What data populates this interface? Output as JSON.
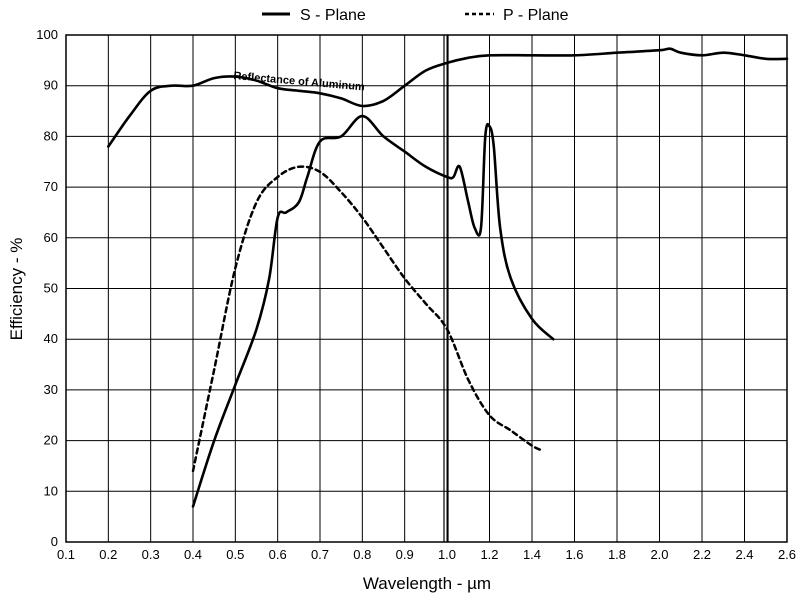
{
  "chart_data": {
    "type": "line",
    "title": "",
    "xlabel": "Wavelength - µm",
    "ylabel": "Efficiency - %",
    "xlim": [
      0.1,
      2.6
    ],
    "ylim": [
      0,
      100
    ],
    "x_major_ticks": [
      0.1,
      0.2,
      0.3,
      0.4,
      0.5,
      0.6,
      0.7,
      0.8,
      0.9,
      1.0,
      1.2,
      1.4,
      1.6,
      1.8,
      2.0,
      2.2,
      2.4,
      2.6
    ],
    "x_tick_labels": [
      "0.1",
      "0.2",
      "0.3",
      "0.4",
      "0.5",
      "0.6",
      "0.7",
      "0.8",
      "0.9",
      "1.0",
      "1.2",
      "1.4",
      "1.6",
      "1.8",
      "2.0",
      "2.2",
      "2.4",
      "2.6"
    ],
    "y_ticks": [
      0,
      10,
      20,
      30,
      40,
      50,
      60,
      70,
      80,
      90,
      100
    ],
    "y_tick_labels": [
      "0",
      "10",
      "20",
      "30",
      "40",
      "50",
      "60",
      "70",
      "80",
      "90",
      "100"
    ],
    "grid": true,
    "legend_position": "top",
    "axis_break_at": 1.0,
    "annotation": {
      "text": "Reflectance of Aluminum",
      "x": 0.65,
      "y": 89
    },
    "series": [
      {
        "name": "S - Plane",
        "style": "solid",
        "x": [
          0.4,
          0.45,
          0.5,
          0.55,
          0.58,
          0.6,
          0.62,
          0.65,
          0.67,
          0.7,
          0.75,
          0.8,
          0.85,
          0.9,
          0.95,
          1.0,
          1.03,
          1.06,
          1.1,
          1.13,
          1.16,
          1.18,
          1.2,
          1.22,
          1.25,
          1.3,
          1.4,
          1.5
        ],
        "values": [
          7,
          20,
          31,
          42,
          52,
          64,
          65,
          67,
          72,
          79,
          80,
          84,
          80,
          77,
          74,
          72,
          72,
          74,
          67,
          62,
          62,
          80,
          82,
          78,
          62,
          52,
          44,
          40
        ]
      },
      {
        "name": "P - Plane",
        "style": "dashed",
        "x": [
          0.4,
          0.45,
          0.5,
          0.55,
          0.6,
          0.65,
          0.7,
          0.75,
          0.8,
          0.85,
          0.9,
          0.95,
          1.0,
          1.1,
          1.2,
          1.3,
          1.4,
          1.45
        ],
        "values": [
          14,
          34,
          54,
          67,
          72,
          74,
          73,
          69,
          64,
          58,
          52,
          47,
          42,
          32,
          25,
          22,
          19,
          18
        ]
      },
      {
        "name": "Reflectance of Aluminum",
        "style": "solid",
        "x": [
          0.2,
          0.25,
          0.3,
          0.35,
          0.4,
          0.45,
          0.5,
          0.55,
          0.6,
          0.65,
          0.7,
          0.75,
          0.8,
          0.85,
          0.9,
          0.95,
          1.0,
          1.1,
          1.2,
          1.4,
          1.6,
          1.8,
          2.0,
          2.05,
          2.1,
          2.2,
          2.3,
          2.4,
          2.5,
          2.6
        ],
        "values": [
          78,
          84,
          89,
          90,
          90,
          91.5,
          91.8,
          91,
          89.5,
          89,
          88.5,
          87.5,
          86,
          87,
          90,
          93,
          94.5,
          95.5,
          96,
          96,
          96,
          96.5,
          97,
          97.3,
          96.5,
          96,
          96.5,
          96,
          95.3,
          95.3
        ]
      }
    ]
  }
}
